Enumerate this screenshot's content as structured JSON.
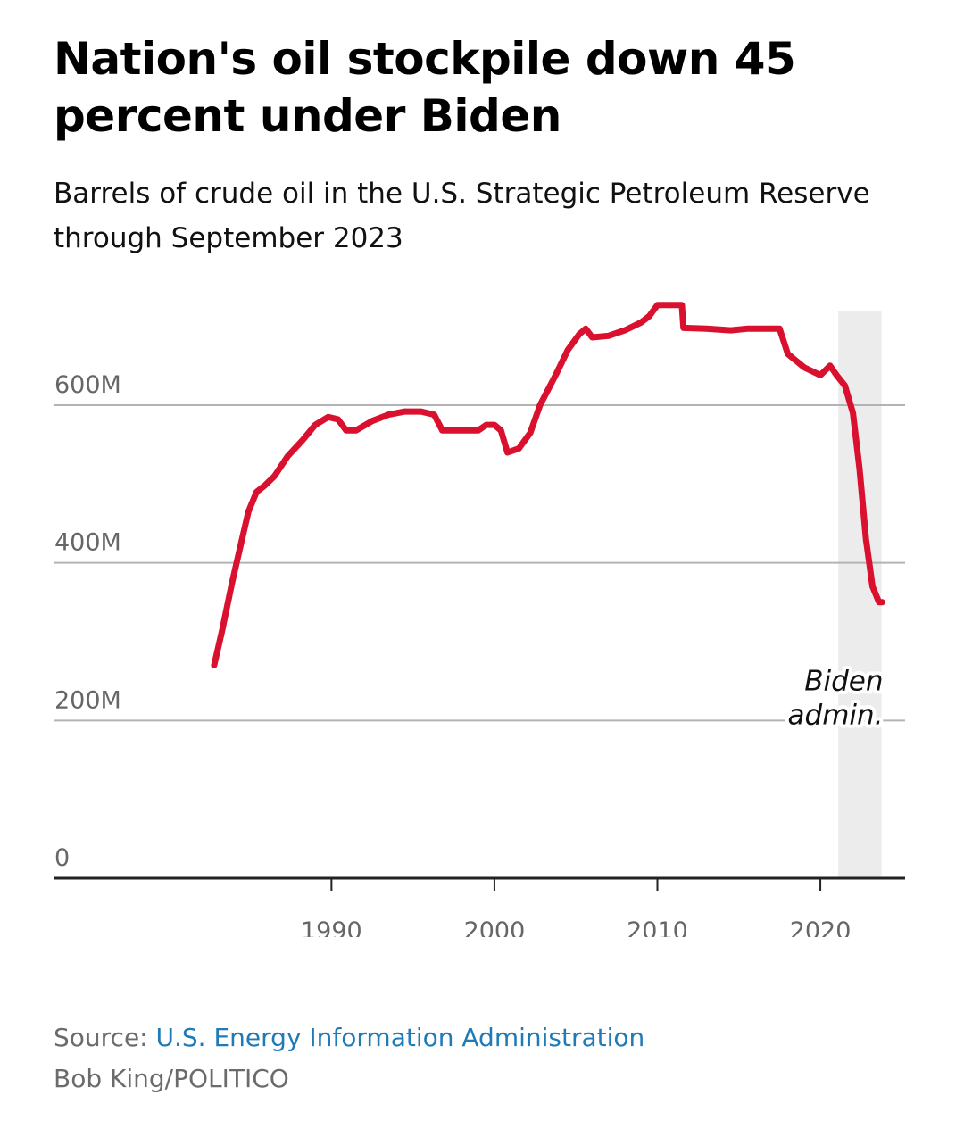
{
  "header": {
    "title": "Nation's oil stockpile down 45 percent under Biden",
    "subtitle": "Barrels of crude oil in the U.S. Strategic Petroleum Reserve through September 2023"
  },
  "footer": {
    "source_label": "Source:",
    "source_name": "U.S. Energy Information Administration",
    "credit": "Bob King/POLITICO"
  },
  "colors": {
    "line": "#d9112f",
    "grid": "#b3b3b3",
    "axis": "#222222",
    "shade": "#ececec",
    "link": "#1f7bb6"
  },
  "chart_data": {
    "type": "line",
    "title": "",
    "xlabel": "",
    "ylabel": "",
    "xlim": [
      1973,
      2025.2
    ],
    "ylim": [
      0,
      720
    ],
    "y_ticks": [
      {
        "value": 0,
        "label": "0"
      },
      {
        "value": 200,
        "label": "200M"
      },
      {
        "value": 400,
        "label": "400M"
      },
      {
        "value": 600,
        "label": "600M"
      }
    ],
    "x_ticks": [
      {
        "value": 1990,
        "label": "1990"
      },
      {
        "value": 2000,
        "label": "2000"
      },
      {
        "value": 2010,
        "label": "2010"
      },
      {
        "value": 2020,
        "label": "2020"
      }
    ],
    "grid": "horizontal",
    "shaded_region": {
      "start": 2021.1,
      "end": 2023.75,
      "label_line1": "Biden",
      "label_line2": "admin."
    },
    "series": [
      {
        "values_unit": "million barrels",
        "x": [
          1982.8,
          1983.3,
          1983.9,
          1984.4,
          1984.9,
          1985.4,
          1985.9,
          1986.5,
          1987.3,
          1988.2,
          1989.0,
          1989.8,
          1990.4,
          1990.9,
          1991.2,
          1991.5,
          1992.5,
          1993.5,
          1994.5,
          1995.5,
          1996.3,
          1996.8,
          1998.0,
          1999.0,
          1999.5,
          2000.0,
          2000.4,
          2000.8,
          2001.5,
          2002.2,
          2002.8,
          2003.3,
          2003.8,
          2004.5,
          2005.2,
          2005.6,
          2006.0,
          2007.0,
          2008.0,
          2009.0,
          2009.5,
          2010.0,
          2011.5,
          2011.6,
          2013.0,
          2014.5,
          2015.5,
          2016.5,
          2017.5,
          2018.0,
          2019.0,
          2020.0,
          2020.6,
          2021.0,
          2021.5,
          2022.0,
          2022.4,
          2022.8,
          2023.2,
          2023.6,
          2023.8
        ],
        "values": [
          270,
          315,
          375,
          420,
          465,
          490,
          498,
          510,
          535,
          555,
          575,
          585,
          582,
          568,
          568,
          568,
          580,
          588,
          592,
          592,
          588,
          568,
          568,
          568,
          575,
          575,
          568,
          540,
          545,
          565,
          600,
          620,
          640,
          670,
          690,
          697,
          686,
          688,
          695,
          705,
          713,
          727,
          727,
          698,
          697,
          695,
          697,
          697,
          697,
          665,
          648,
          638,
          650,
          638,
          625,
          590,
          520,
          430,
          370,
          350,
          350
        ]
      }
    ]
  }
}
